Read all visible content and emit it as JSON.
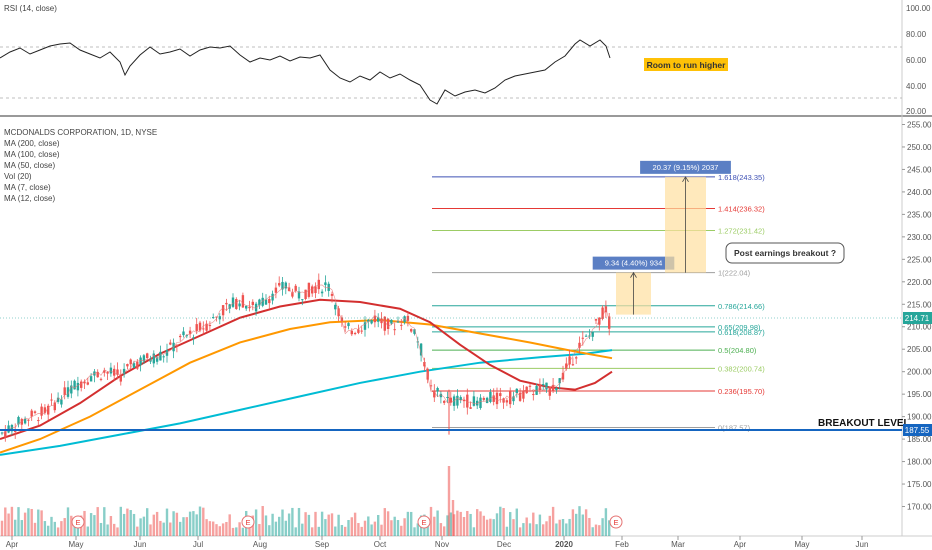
{
  "rsi_panel": {
    "label": "RSI (14, close)",
    "y_ticks": [
      "100.00",
      "80.00",
      "60.00",
      "40.00",
      "20.00"
    ],
    "note": "Room to run higher"
  },
  "main_panel": {
    "title": "MCDONALDS CORPORATION, 1D, NYSE",
    "indicators": [
      "MA (200, close)",
      "MA (100, close)",
      "MA (50, close)",
      "Vol (20)",
      "MA (7, close)",
      "MA (12, close)"
    ],
    "price_label": "214.71",
    "breakout_price_label": "187.55",
    "breakout_text": "BREAKOUT LEVEL",
    "annotation": "Post earnings breakout ?",
    "measure_1": "9.34 (4.40%) 934",
    "measure_2": "20.37 (9.15%) 2037"
  },
  "colors": {
    "up": "#26a69a",
    "down": "#ef5350",
    "ma200": "#00bcd4",
    "ma100": "#ff9800",
    "ma50": "#d32f2f",
    "breakout": "#1565c0",
    "measure_fill": "#ffe0a0",
    "label_box": "#5b7fc4",
    "note_bg": "#ffc107"
  },
  "chart_data": {
    "type": "line",
    "x_ticks": [
      "Apr",
      "May",
      "Jun",
      "Jul",
      "Aug",
      "Sep",
      "Oct",
      "Nov",
      "Dec",
      "2020",
      "Feb",
      "Mar",
      "Apr",
      "May",
      "Jun"
    ],
    "y_ticks": [
      "255.00",
      "250.00",
      "245.00",
      "240.00",
      "235.00",
      "230.00",
      "225.00",
      "220.00",
      "215.00",
      "210.00",
      "205.00",
      "200.00",
      "195.00",
      "190.00",
      "185.00",
      "180.00",
      "175.00",
      "170.00"
    ],
    "ylim": [
      167,
      256
    ],
    "earnings_marker": "E",
    "fib_levels": [
      {
        "label": "1.618(243.35)",
        "value": 243.35,
        "color": "#3f51b5"
      },
      {
        "label": "1.414(236.32)",
        "value": 236.32,
        "color": "#e53935"
      },
      {
        "label": "1.272(231.42)",
        "value": 231.42,
        "color": "#9ccc65"
      },
      {
        "label": "1(222.04)",
        "value": 222.04,
        "color": "#9e9e9e"
      },
      {
        "label": "0.786(214.66)",
        "value": 214.66,
        "color": "#26a69a"
      },
      {
        "label": "0.65(209.98)",
        "value": 209.98,
        "color": "#26a69a"
      },
      {
        "label": "0.618(208.87)",
        "value": 208.87,
        "color": "#26a69a"
      },
      {
        "label": "0.5(204.80)",
        "value": 204.8,
        "color": "#4caf50"
      },
      {
        "label": "0.382(200.74)",
        "value": 200.74,
        "color": "#9ccc65"
      },
      {
        "label": "0.236(195.70)",
        "value": 195.7,
        "color": "#e53935"
      },
      {
        "label": "0(187.57)",
        "value": 187.57,
        "color": "#9e9e9e"
      }
    ],
    "series": [
      {
        "name": "MA (200, close)",
        "values": [
          [
            0,
            181.5
          ],
          [
            60,
            183.5
          ],
          [
            120,
            186
          ],
          [
            180,
            188.5
          ],
          [
            240,
            191.5
          ],
          [
            300,
            194.5
          ],
          [
            360,
            197.5
          ],
          [
            420,
            200
          ],
          [
            480,
            202
          ],
          [
            540,
            203.2
          ],
          [
            585,
            204
          ],
          [
            612,
            204.8
          ]
        ]
      },
      {
        "name": "MA (100, close)",
        "values": [
          [
            0,
            182
          ],
          [
            40,
            185
          ],
          [
            90,
            190
          ],
          [
            140,
            196
          ],
          [
            190,
            202
          ],
          [
            240,
            206.5
          ],
          [
            290,
            209.5
          ],
          [
            330,
            211
          ],
          [
            380,
            211.5
          ],
          [
            430,
            210.5
          ],
          [
            480,
            208.5
          ],
          [
            530,
            206.5
          ],
          [
            575,
            204.5
          ],
          [
            612,
            203
          ]
        ]
      },
      {
        "name": "MA (50, close)",
        "values": [
          [
            0,
            185
          ],
          [
            40,
            188
          ],
          [
            80,
            193
          ],
          [
            120,
            199
          ],
          [
            160,
            204
          ],
          [
            200,
            208
          ],
          [
            240,
            212
          ],
          [
            280,
            214.5
          ],
          [
            320,
            216
          ],
          [
            360,
            215.5
          ],
          [
            400,
            214
          ],
          [
            430,
            211
          ],
          [
            460,
            206
          ],
          [
            490,
            201.5
          ],
          [
            520,
            198
          ],
          [
            550,
            196.5
          ],
          [
            575,
            196
          ],
          [
            595,
            197.5
          ],
          [
            612,
            200
          ]
        ]
      },
      {
        "name": "Price",
        "values": [
          [
            0,
            186
          ],
          [
            15,
            188
          ],
          [
            30,
            190
          ],
          [
            45,
            191
          ],
          [
            60,
            194
          ],
          [
            75,
            197
          ],
          [
            90,
            199
          ],
          [
            105,
            200
          ],
          [
            120,
            199
          ],
          [
            135,
            202
          ],
          [
            150,
            203
          ],
          [
            165,
            204
          ],
          [
            180,
            207
          ],
          [
            195,
            209
          ],
          [
            210,
            211
          ],
          [
            225,
            214
          ],
          [
            240,
            216
          ],
          [
            255,
            214
          ],
          [
            270,
            217
          ],
          [
            285,
            219
          ],
          [
            300,
            217
          ],
          [
            315,
            219
          ],
          [
            330,
            219
          ],
          [
            345,
            209
          ],
          [
            360,
            210
          ],
          [
            375,
            212
          ],
          [
            390,
            210
          ],
          [
            405,
            212
          ],
          [
            415,
            209
          ],
          [
            425,
            202
          ],
          [
            432,
            195
          ],
          [
            440,
            195
          ],
          [
            450,
            193
          ],
          [
            460,
            194
          ],
          [
            475,
            193
          ],
          [
            490,
            194
          ],
          [
            505,
            194
          ],
          [
            520,
            195
          ],
          [
            535,
            196
          ],
          [
            550,
            196
          ],
          [
            560,
            198
          ],
          [
            570,
            202
          ],
          [
            580,
            206
          ],
          [
            590,
            208
          ],
          [
            600,
            212
          ],
          [
            606,
            214
          ],
          [
            610,
            210
          ],
          [
            614,
            213
          ]
        ]
      }
    ]
  }
}
